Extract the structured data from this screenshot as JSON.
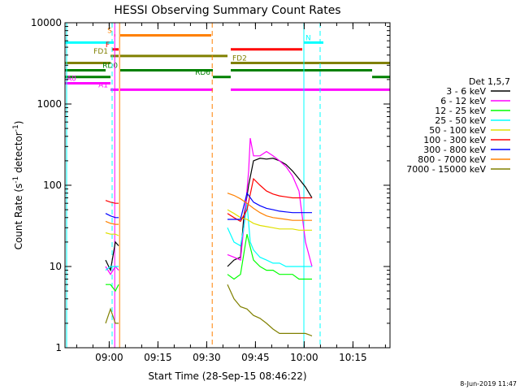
{
  "chart_data": {
    "type": "line",
    "title": "HESSI Observing Summary Count Rates",
    "xlabel": "Start Time (28-Sep-15 08:46:22)",
    "ylabel_base": "Count Rate (s",
    "ylabel_sup": "-1",
    "ylabel_rest": " detector",
    "ylabel_end": ")",
    "yscale": "log",
    "ylim": [
      1,
      10000
    ],
    "xlim_minutes": [
      0,
      100
    ],
    "x_ticks": [
      {
        "label": "09:00",
        "t": 13.6
      },
      {
        "label": "09:15",
        "t": 28.6
      },
      {
        "label": "09:30",
        "t": 43.6
      },
      {
        "label": "09:45",
        "t": 58.6
      },
      {
        "label": "10:00",
        "t": 73.6
      },
      {
        "label": "10:15",
        "t": 88.6
      }
    ],
    "y_ticks": [
      {
        "label": "1",
        "v": 1
      },
      {
        "label": "10",
        "v": 10
      },
      {
        "label": "100",
        "v": 100
      },
      {
        "label": "1000",
        "v": 1000
      },
      {
        "label": "10000",
        "v": 10000
      }
    ],
    "legend_title": "Det 1,5,7",
    "series": [
      {
        "name": "3 - 6 keV",
        "color": "#000000",
        "segments": [
          {
            "t": [
              12.5,
              14,
              15.5,
              16.5
            ],
            "v": [
              12,
              9,
              20,
              18
            ]
          },
          {
            "t": [
              50,
              52,
              54,
              55,
              56.5,
              58,
              60,
              62,
              64,
              66,
              68,
              70,
              72,
              74,
              76
            ],
            "v": [
              10,
              12,
              13,
              40,
              100,
              200,
              215,
              210,
              215,
              200,
              180,
              150,
              120,
              95,
              70
            ]
          }
        ]
      },
      {
        "name": "6 - 12 keV",
        "color": "#ff00ff",
        "segments": [
          {
            "t": [
              12.5,
              14,
              15.5,
              16.5
            ],
            "v": [
              10,
              8,
              10,
              9
            ]
          },
          {
            "t": [
              50,
              52,
              54,
              55,
              56.5,
              57,
              58,
              60,
              62,
              64,
              66,
              68,
              70,
              72,
              74,
              76
            ],
            "v": [
              14,
              13,
              12,
              30,
              150,
              380,
              230,
              230,
              260,
              230,
              200,
              170,
              130,
              85,
              20,
              10
            ]
          }
        ]
      },
      {
        "name": "12 - 25 keV",
        "color": "#00ff00",
        "segments": [
          {
            "t": [
              12.5,
              14,
              15.5,
              16.5
            ],
            "v": [
              6,
              6,
              5,
              6
            ]
          },
          {
            "t": [
              50,
              52,
              54,
              56,
              58,
              60,
              62,
              64,
              66,
              68,
              70,
              72,
              74,
              76
            ],
            "v": [
              8,
              7,
              8,
              25,
              12,
              10,
              9,
              9,
              8,
              8,
              8,
              7,
              7,
              7
            ]
          }
        ]
      },
      {
        "name": "25 - 50 keV",
        "color": "#00ffff",
        "segments": [
          {
            "t": [
              12.5,
              14,
              15.5,
              16.5
            ],
            "v": [
              9,
              10,
              10,
              10
            ]
          },
          {
            "t": [
              50,
              52,
              54,
              55,
              56,
              57,
              58,
              60,
              62,
              64,
              66,
              68,
              70,
              72,
              74,
              76
            ],
            "v": [
              30,
              20,
              18,
              30,
              60,
              20,
              16,
              13,
              12,
              11,
              11,
              10,
              10,
              10,
              10,
              10
            ]
          }
        ]
      },
      {
        "name": "50 - 100 keV",
        "color": "#e0e000",
        "segments": [
          {
            "t": [
              12.5,
              14,
              15.5,
              16.5
            ],
            "v": [
              26,
              25,
              25,
              24
            ]
          },
          {
            "t": [
              50,
              52,
              54,
              56,
              58,
              60,
              62,
              64,
              66,
              68,
              70,
              72,
              74,
              76
            ],
            "v": [
              50,
              45,
              40,
              38,
              34,
              32,
              31,
              30,
              29,
              29,
              29,
              28,
              28,
              28
            ]
          }
        ]
      },
      {
        "name": "100 - 300 keV",
        "color": "#ff0000",
        "segments": [
          {
            "t": [
              12.5,
              14,
              15.5,
              16.5
            ],
            "v": [
              65,
              62,
              60,
              60
            ]
          },
          {
            "t": [
              50,
              52,
              54,
              56,
              58,
              60,
              62,
              64,
              66,
              68,
              70,
              72,
              74,
              76
            ],
            "v": [
              45,
              40,
              36,
              50,
              120,
              100,
              85,
              78,
              74,
              72,
              70,
              70,
              70,
              70
            ]
          }
        ]
      },
      {
        "name": "300 - 800 keV",
        "color": "#0000ff",
        "segments": [
          {
            "t": [
              12.5,
              14,
              15.5,
              16.5
            ],
            "v": [
              45,
              42,
              40,
              40
            ]
          },
          {
            "t": [
              50,
              52,
              54,
              56,
              58,
              60,
              62,
              64,
              66,
              68,
              70,
              72,
              74,
              76
            ],
            "v": [
              38,
              38,
              38,
              80,
              62,
              56,
              52,
              50,
              48,
              47,
              46,
              46,
              46,
              46
            ]
          }
        ]
      },
      {
        "name": "800 - 7000 keV",
        "color": "#ff8000",
        "segments": [
          {
            "t": [
              12.5,
              14,
              15.5,
              16.5
            ],
            "v": [
              36,
              34,
              33,
              33
            ]
          },
          {
            "t": [
              50,
              52,
              54,
              56,
              58,
              60,
              62,
              64,
              66,
              68,
              70,
              72,
              74,
              76
            ],
            "v": [
              80,
              75,
              68,
              60,
              52,
              46,
              42,
              40,
              39,
              38,
              37,
              37,
              37,
              37
            ]
          }
        ]
      },
      {
        "name": "7000 - 15000 keV",
        "color": "#808000",
        "segments": [
          {
            "t": [
              12.5,
              14,
              15.5,
              16.5
            ],
            "v": [
              2,
              3,
              2,
              2
            ]
          },
          {
            "t": [
              50,
              52,
              54,
              56,
              58,
              60,
              62,
              64,
              66,
              68,
              70,
              72,
              74,
              76
            ],
            "v": [
              6,
              4,
              3.2,
              3,
              2.5,
              2.3,
              2,
              1.7,
              1.5,
              1.5,
              1.5,
              1.5,
              1.5,
              1.4
            ]
          }
        ]
      }
    ],
    "flag_bars": [
      {
        "label": "S",
        "color": "#ff8000",
        "value": 7000,
        "spans": [
          [
            15.2,
            15.5
          ],
          [
            17,
            45
          ]
        ]
      },
      {
        "label": "N",
        "color": "#00ffff",
        "value": 5700,
        "spans": [
          [
            0,
            15
          ],
          [
            73.5,
            79.5
          ]
        ],
        "label_offset": 1
      },
      {
        "label": "F",
        "color": "#ff0000",
        "value": 4700,
        "spans": [
          [
            14.5,
            16.5
          ],
          [
            51,
            73
          ]
        ]
      },
      {
        "label": "FD1",
        "color": "#808000",
        "value": 3900,
        "spans": [
          [
            14,
            16.5
          ],
          [
            17,
            50
          ]
        ]
      },
      {
        "label": "FD2",
        "color": "#808000",
        "value": 3200,
        "spans": [
          [
            0,
            14
          ],
          [
            51,
            100
          ]
        ],
        "label_offset": 1
      },
      {
        "label": "RD0",
        "color": "#008000",
        "value": 2600,
        "spans": [
          [
            0,
            12.5
          ],
          [
            17,
            45.5
          ],
          [
            51,
            94.5
          ]
        ]
      },
      {
        "label": "RD6",
        "color": "#008000",
        "value": 2150,
        "spans": [
          [
            0,
            14
          ],
          [
            45.5,
            51
          ],
          [
            94.5,
            100
          ]
        ]
      },
      {
        "label": "A0",
        "color": "#ff00ff",
        "value": 1800,
        "spans": [
          [
            0,
            14
          ]
        ],
        "label_offset": 1
      },
      {
        "label": "A1",
        "color": "#ff00ff",
        "value": 1500,
        "spans": [
          [
            14,
            16.5
          ],
          [
            17,
            45.5
          ],
          [
            51,
            100
          ]
        ]
      }
    ],
    "vertical_lines": [
      {
        "t": 0.5,
        "color": "#00ffff",
        "style": "solid"
      },
      {
        "t": 14.5,
        "color": "#00ffff",
        "style": "dashed"
      },
      {
        "t": 15.3,
        "color": "#ff00ff",
        "style": "solid"
      },
      {
        "t": 16.8,
        "color": "#ff8000",
        "style": "solid"
      },
      {
        "t": 45.3,
        "color": "#ff8000",
        "style": "dashed"
      },
      {
        "t": 73.5,
        "color": "#00ffff",
        "style": "solid"
      },
      {
        "t": 78.5,
        "color": "#00ffff",
        "style": "dashed"
      }
    ],
    "data_gaps": [
      [
        12.5,
        16.5
      ],
      [
        50,
        76
      ]
    ]
  },
  "footer": {
    "timestamp": "8-Jun-2019 11:47"
  }
}
